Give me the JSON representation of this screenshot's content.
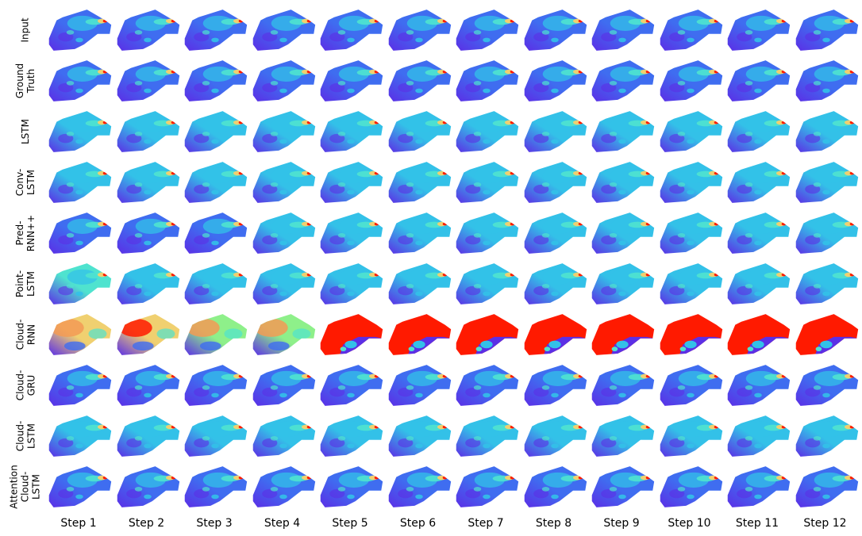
{
  "rows": [
    {
      "label": "Input",
      "style": "input"
    },
    {
      "label": "Ground\nTruth",
      "style": "gt"
    },
    {
      "label": "LSTM",
      "style": "lstm"
    },
    {
      "label": "Conv-\nLSTM",
      "style": "conv"
    },
    {
      "label": "Pred-\nRNN++",
      "style": "pred"
    },
    {
      "label": "Point-\nLSTM",
      "style": "point"
    },
    {
      "label": "Cloud-\nRNN",
      "style": "rnn"
    },
    {
      "label": "Cloud-\nGRU",
      "style": "gru"
    },
    {
      "label": "Cloud-\nLSTM",
      "style": "cloudlstm"
    },
    {
      "label": "Attention\nCloud-\nLSTM",
      "style": "attn"
    }
  ],
  "columns": [
    "Step 1",
    "Step 2",
    "Step 3",
    "Step 4",
    "Step 5",
    "Step 6",
    "Step 7",
    "Step 8",
    "Step 9",
    "Step 10",
    "Step 11",
    "Step 12"
  ],
  "colors": {
    "deep": "#5b2fe6",
    "blue": "#3f6df0",
    "cyan": "#33c1e8",
    "aqua": "#4fe3cf",
    "green": "#8ef08a",
    "yellow": "#f0d070",
    "orange": "#f39a55",
    "red": "#ff1a00"
  }
}
